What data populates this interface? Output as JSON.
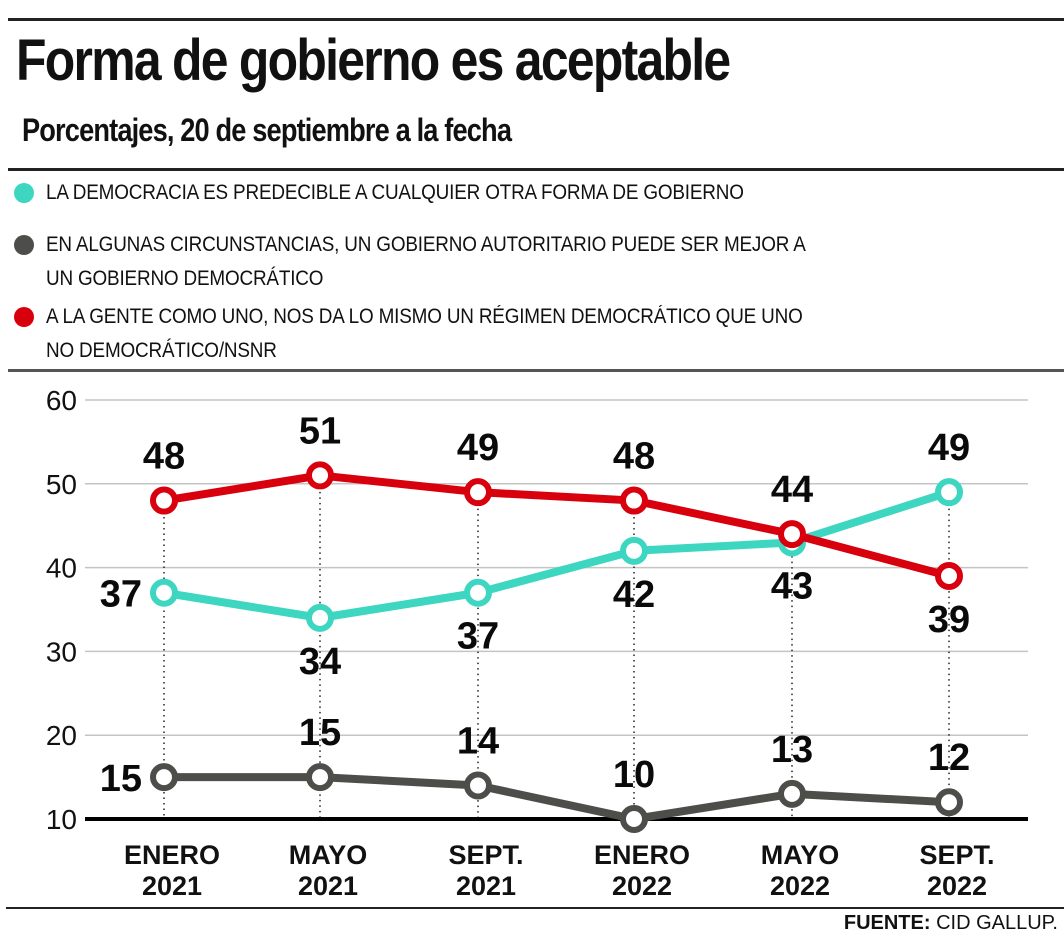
{
  "header": {
    "title": "Forma de gobierno es aceptable",
    "subtitle": "Porcentajes, 20 de septiembre a la fecha"
  },
  "legend": [
    {
      "label": "LA DEMOCRACIA ES PREDECIBLE A CUALQUIER OTRA FORMA DE GOBIERNO",
      "lines": [
        "LA DEMOCRACIA ES PREDECIBLE A CUALQUIER OTRA FORMA DE GOBIERNO"
      ],
      "color": "#3dd6c0",
      "icon": "circle-dot-icon"
    },
    {
      "label": "EN ALGUNAS CIRCUNSTANCIAS, UN GOBIERNO AUTORITARIO PUEDE SER MEJOR A UN GOBIERNO DEMOCRÁTICO",
      "lines": [
        "EN ALGUNAS CIRCUNSTANCIAS, UN GOBIERNO AUTORITARIO PUEDE SER MEJOR A",
        "UN GOBIERNO DEMOCRÁTICO"
      ],
      "color": "#4d4d4a",
      "icon": "circle-dot-icon"
    },
    {
      "label": "A LA GENTE COMO UNO, NOS DA LO MISMO UN RÉGIMEN DEMOCRÁTICO QUE UNO NO DEMOCRÁTICO/NSNR",
      "lines": [
        "A LA GENTE COMO UNO, NOS DA LO MISMO UN RÉGIMEN DEMOCRÁTICO QUE UNO",
        "NO DEMOCRÁTICO/NSNR"
      ],
      "color": "#d9000d",
      "icon": "circle-dot-icon"
    }
  ],
  "source": {
    "label": "FUENTE:",
    "value": " CID GALLUP."
  },
  "chart_data": {
    "type": "line",
    "title": "Forma de gobierno es aceptable",
    "subtitle": "Porcentajes, 20 de septiembre a la fecha",
    "xlabel": "",
    "ylabel": "",
    "categories": [
      [
        "ENERO",
        "2021"
      ],
      [
        "MAYO",
        "2021"
      ],
      [
        "SEPT.",
        "2021"
      ],
      [
        "ENERO",
        "2022"
      ],
      [
        "MAYO",
        "2022"
      ],
      [
        "SEPT.",
        "2022"
      ]
    ],
    "ylim": [
      10,
      60
    ],
    "yticks": [
      10,
      20,
      30,
      40,
      50,
      60
    ],
    "grid": true,
    "legend_position": "top",
    "series": [
      {
        "name": "LA DEMOCRACIA ES PREDECIBLE A CUALQUIER OTRA FORMA DE GOBIERNO",
        "color": "#3dd6c0",
        "values": [
          37,
          34,
          37,
          42,
          43,
          49
        ],
        "label_pos": [
          "left",
          "below",
          "below",
          "below",
          "below",
          "above"
        ]
      },
      {
        "name": "EN ALGUNAS CIRCUNSTANCIAS, UN GOBIERNO AUTORITARIO PUEDE SER MEJOR A UN GOBIERNO DEMOCRÁTICO",
        "color": "#4d4d4a",
        "values": [
          15,
          15,
          14,
          10,
          13,
          12
        ],
        "label_pos": [
          "left",
          "above",
          "above",
          "above",
          "above",
          "above"
        ]
      },
      {
        "name": "A LA GENTE COMO UNO, NOS DA LO MISMO UN RÉGIMEN DEMOCRÁTICO QUE UNO NO DEMOCRÁTICO/NSNR",
        "color": "#d9000d",
        "values": [
          48,
          51,
          49,
          48,
          44,
          39
        ],
        "label_pos": [
          "above",
          "above",
          "above",
          "above",
          "above",
          "below"
        ]
      }
    ]
  }
}
